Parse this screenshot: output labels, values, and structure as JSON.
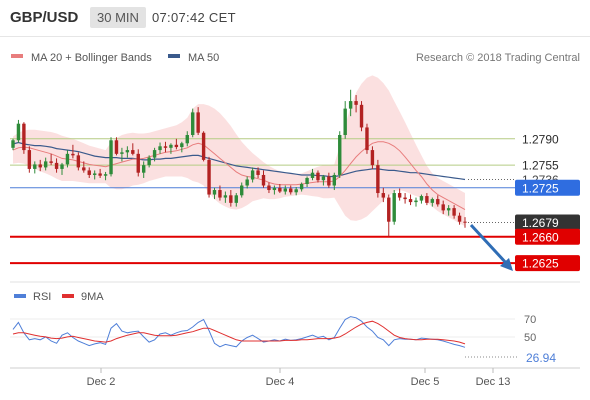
{
  "header": {
    "symbol": "GBP/USD",
    "timeframe": "30 MIN",
    "time": "07:07:42 CET"
  },
  "legend": {
    "bb_label": "MA 20 + Bollinger Bands",
    "ma50_label": "MA 50",
    "credit": "Research © 2018 Trading Central",
    "bb_color": "#e87d7d",
    "ma50_color": "#3a5a8c"
  },
  "rsi_legend": {
    "rsi_label": "RSI",
    "ma_label": "9MA",
    "rsi_color": "#4f7fd8",
    "ma_color": "#e03030"
  },
  "colors": {
    "up_candle": "#2e8b3a",
    "down_candle": "#b22222",
    "resistance_line": "#b5cc84",
    "pivot_line": "#4f7fd8",
    "support_line": "#e00000",
    "arrow": "#2f6db5"
  },
  "chart_data": {
    "type": "candlestick",
    "price_axis_range": [
      1.26,
      1.286
    ],
    "levels": [
      {
        "label": "1.2790",
        "value": 1.279,
        "kind": "resistance"
      },
      {
        "label": "1.2755",
        "value": 1.2755,
        "kind": "resistance"
      },
      {
        "label": "1.2736",
        "value": 1.2736,
        "kind": "ma50"
      },
      {
        "label": "1.2725",
        "value": 1.2725,
        "kind": "pivot"
      },
      {
        "label": "1.2679",
        "value": 1.2679,
        "kind": "last"
      },
      {
        "label": "1.2660",
        "value": 1.266,
        "kind": "support"
      },
      {
        "label": "1.2625",
        "value": 1.2625,
        "kind": "support"
      }
    ],
    "x_ticks": [
      "Dec 2",
      "Dec 4",
      "Dec 5",
      "Dec 13"
    ],
    "ohlc": [
      [
        1.2778,
        1.279,
        1.2775,
        1.2788
      ],
      [
        1.2788,
        1.2815,
        1.2785,
        1.281
      ],
      [
        1.281,
        1.2812,
        1.277,
        1.2775
      ],
      [
        1.2775,
        1.278,
        1.2745,
        1.275
      ],
      [
        1.275,
        1.276,
        1.2744,
        1.2756
      ],
      [
        1.2756,
        1.2762,
        1.2747,
        1.2752
      ],
      [
        1.2752,
        1.2765,
        1.2748,
        1.276
      ],
      [
        1.276,
        1.277,
        1.2755,
        1.2758
      ],
      [
        1.2758,
        1.2764,
        1.2745,
        1.275
      ],
      [
        1.275,
        1.2758,
        1.2742,
        1.2756
      ],
      [
        1.2756,
        1.2775,
        1.2752,
        1.277
      ],
      [
        1.277,
        1.2782,
        1.2764,
        1.2768
      ],
      [
        1.2768,
        1.2772,
        1.2748,
        1.2752
      ],
      [
        1.2752,
        1.276,
        1.2745,
        1.2748
      ],
      [
        1.2748,
        1.2752,
        1.2738,
        1.2742
      ],
      [
        1.2742,
        1.2748,
        1.2736,
        1.2744
      ],
      [
        1.2744,
        1.275,
        1.2738,
        1.2741
      ],
      [
        1.2741,
        1.2746,
        1.2735,
        1.2743
      ],
      [
        1.2743,
        1.2792,
        1.274,
        1.2788
      ],
      [
        1.2788,
        1.2792,
        1.2768,
        1.277
      ],
      [
        1.277,
        1.2778,
        1.276,
        1.2772
      ],
      [
        1.2772,
        1.278,
        1.2765,
        1.2775
      ],
      [
        1.2775,
        1.2784,
        1.2768,
        1.277
      ],
      [
        1.277,
        1.2776,
        1.274,
        1.2745
      ],
      [
        1.2745,
        1.276,
        1.2738,
        1.2755
      ],
      [
        1.2755,
        1.2768,
        1.2752,
        1.2765
      ],
      [
        1.2765,
        1.2778,
        1.276,
        1.2775
      ],
      [
        1.2775,
        1.2785,
        1.277,
        1.278
      ],
      [
        1.278,
        1.2786,
        1.2772,
        1.2778
      ],
      [
        1.2778,
        1.2784,
        1.277,
        1.2782
      ],
      [
        1.2782,
        1.279,
        1.2776,
        1.2779
      ],
      [
        1.2779,
        1.2786,
        1.2772,
        1.2784
      ],
      [
        1.2784,
        1.28,
        1.278,
        1.2795
      ],
      [
        1.2795,
        1.283,
        1.2792,
        1.2825
      ],
      [
        1.2825,
        1.2832,
        1.2795,
        1.2798
      ],
      [
        1.2798,
        1.28,
        1.276,
        1.2762
      ],
      [
        1.2762,
        1.2766,
        1.2712,
        1.2716
      ],
      [
        1.2716,
        1.2725,
        1.271,
        1.2722
      ],
      [
        1.2722,
        1.2728,
        1.2708,
        1.2712
      ],
      [
        1.2712,
        1.272,
        1.2705,
        1.2715
      ],
      [
        1.2715,
        1.2722,
        1.27,
        1.2705
      ],
      [
        1.2705,
        1.2718,
        1.27,
        1.2715
      ],
      [
        1.2715,
        1.2732,
        1.2712,
        1.2728
      ],
      [
        1.2728,
        1.274,
        1.2724,
        1.2736
      ],
      [
        1.2736,
        1.2752,
        1.2732,
        1.2748
      ],
      [
        1.2748,
        1.2752,
        1.2738,
        1.2742
      ],
      [
        1.2742,
        1.2748,
        1.2725,
        1.2728
      ],
      [
        1.2728,
        1.2732,
        1.2718,
        1.2722
      ],
      [
        1.2722,
        1.2728,
        1.2716,
        1.2725
      ],
      [
        1.2725,
        1.273,
        1.2718,
        1.272
      ],
      [
        1.272,
        1.2728,
        1.2716,
        1.2724
      ],
      [
        1.2724,
        1.2728,
        1.2716,
        1.2719
      ],
      [
        1.2719,
        1.2726,
        1.2715,
        1.2723
      ],
      [
        1.2723,
        1.2732,
        1.272,
        1.273
      ],
      [
        1.273,
        1.274,
        1.2726,
        1.2738
      ],
      [
        1.2738,
        1.275,
        1.2735,
        1.2745
      ],
      [
        1.2745,
        1.2748,
        1.2732,
        1.2735
      ],
      [
        1.2735,
        1.2742,
        1.2728,
        1.274
      ],
      [
        1.274,
        1.2745,
        1.2725,
        1.2728
      ],
      [
        1.2728,
        1.2745,
        1.2722,
        1.2742
      ],
      [
        1.2742,
        1.28,
        1.2738,
        1.2795
      ],
      [
        1.2795,
        1.284,
        1.279,
        1.283
      ],
      [
        1.283,
        1.2855,
        1.282,
        1.284
      ],
      [
        1.284,
        1.2848,
        1.2825,
        1.2835
      ],
      [
        1.2835,
        1.284,
        1.28,
        1.2805
      ],
      [
        1.2805,
        1.281,
        1.277,
        1.2775
      ],
      [
        1.2775,
        1.278,
        1.275,
        1.2755
      ],
      [
        1.2755,
        1.2762,
        1.2712,
        1.2718
      ],
      [
        1.2718,
        1.2725,
        1.2706,
        1.2712
      ],
      [
        1.2712,
        1.2716,
        1.266,
        1.268
      ],
      [
        1.268,
        1.2722,
        1.2676,
        1.2718
      ],
      [
        1.2718,
        1.2724,
        1.2708,
        1.2712
      ],
      [
        1.2712,
        1.2718,
        1.2704,
        1.271
      ],
      [
        1.271,
        1.2716,
        1.2702,
        1.2706
      ],
      [
        1.2706,
        1.2712,
        1.27,
        1.2708
      ],
      [
        1.2708,
        1.2716,
        1.2704,
        1.2714
      ],
      [
        1.2714,
        1.2718,
        1.2702,
        1.2705
      ],
      [
        1.2705,
        1.2712,
        1.27,
        1.271
      ],
      [
        1.271,
        1.2715,
        1.27,
        1.2703
      ],
      [
        1.2703,
        1.2708,
        1.269,
        1.2695
      ],
      [
        1.2695,
        1.2702,
        1.2688,
        1.2698
      ],
      [
        1.2698,
        1.2702,
        1.2684,
        1.2688
      ],
      [
        1.2688,
        1.2692,
        1.2676,
        1.268
      ],
      [
        1.268,
        1.2686,
        1.2672,
        1.2679
      ]
    ],
    "ma50": [
      1.2783,
      1.2785,
      1.2783,
      1.2782,
      1.2781,
      1.2781,
      1.278,
      1.2779,
      1.2777,
      1.2776,
      1.2775,
      1.2774,
      1.2773,
      1.2771,
      1.2769,
      1.2767,
      1.2766,
      1.2765,
      1.2765,
      1.2765,
      1.2764,
      1.2764,
      1.2764,
      1.2763,
      1.2762,
      1.2762,
      1.2763,
      1.2763,
      1.2764,
      1.2764,
      1.2765,
      1.2766,
      1.2767,
      1.2768,
      1.2768,
      1.2766,
      1.2764,
      1.2762,
      1.276,
      1.2758,
      1.2756,
      1.2754,
      1.2753,
      1.2752,
      1.2751,
      1.275,
      1.2749,
      1.2748,
      1.2747,
      1.2746,
      1.2745,
      1.2744,
      1.2743,
      1.2742,
      1.2742,
      1.2742,
      1.2741,
      1.2741,
      1.274,
      1.274,
      1.2741,
      1.2743,
      1.2745,
      1.2747,
      1.2748,
      1.2749,
      1.275,
      1.275,
      1.2749,
      1.2748,
      1.2748,
      1.2747,
      1.2746,
      1.2745,
      1.2745,
      1.2744,
      1.2743,
      1.2742,
      1.2741,
      1.274,
      1.2739,
      1.2738,
      1.2737,
      1.2736
    ],
    "ma20": [
      1.2775,
      1.2778,
      1.2779,
      1.2778,
      1.2776,
      1.2774,
      1.2772,
      1.277,
      1.2767,
      1.2764,
      1.2763,
      1.2762,
      1.276,
      1.2758,
      1.2756,
      1.2755,
      1.2754,
      1.2753,
      1.2755,
      1.2757,
      1.2759,
      1.2761,
      1.2763,
      1.2763,
      1.2764,
      1.2766,
      1.2768,
      1.277,
      1.2772,
      1.2773,
      1.2774,
      1.2776,
      1.2778,
      1.2782,
      1.2784,
      1.2782,
      1.2776,
      1.277,
      1.2764,
      1.2758,
      1.2752,
      1.2746,
      1.2742,
      1.274,
      1.2739,
      1.2737,
      1.2735,
      1.2732,
      1.273,
      1.2729,
      1.2729,
      1.2729,
      1.2729,
      1.273,
      1.2731,
      1.2732,
      1.2733,
      1.2733,
      1.2733,
      1.2734,
      1.274,
      1.2748,
      1.2757,
      1.2766,
      1.2773,
      1.2779,
      1.2784,
      1.2786,
      1.2786,
      1.2784,
      1.278,
      1.2774,
      1.2766,
      1.2757,
      1.2748,
      1.274,
      1.273,
      1.2722,
      1.2716,
      1.2712,
      1.2708,
      1.2704,
      1.27,
      1.2696
    ],
    "bb_width": [
      0.0018,
      0.002,
      0.0022,
      0.0024,
      0.0026,
      0.0027,
      0.0028,
      0.0029,
      0.003,
      0.003,
      0.0029,
      0.0028,
      0.0027,
      0.0026,
      0.0025,
      0.0024,
      0.0023,
      0.0022,
      0.003,
      0.0034,
      0.0036,
      0.0036,
      0.0035,
      0.0034,
      0.0033,
      0.0032,
      0.0032,
      0.0032,
      0.0032,
      0.0033,
      0.0034,
      0.0036,
      0.004,
      0.0048,
      0.0052,
      0.0054,
      0.0058,
      0.006,
      0.006,
      0.0058,
      0.0055,
      0.005,
      0.0044,
      0.0038,
      0.0032,
      0.0028,
      0.0024,
      0.0022,
      0.002,
      0.0018,
      0.0016,
      0.0015,
      0.0014,
      0.0014,
      0.0016,
      0.0018,
      0.002,
      0.0022,
      0.0022,
      0.0022,
      0.004,
      0.006,
      0.0075,
      0.0085,
      0.009,
      0.0092,
      0.009,
      0.0085,
      0.0078,
      0.007,
      0.006,
      0.0052,
      0.0046,
      0.004,
      0.0034,
      0.0028,
      0.0024,
      0.0022,
      0.0022,
      0.0022,
      0.0022,
      0.0022,
      0.0022,
      0.0022
    ],
    "rsi_panel": {
      "y_ticks": [
        "70",
        "50"
      ],
      "last_value": "26.94",
      "ylim": [
        0,
        100
      ],
      "rsi": [
        58,
        70,
        52,
        40,
        42,
        40,
        45,
        38,
        34,
        48,
        52,
        44,
        38,
        34,
        30,
        33,
        35,
        32,
        60,
        68,
        55,
        52,
        54,
        55,
        45,
        36,
        40,
        50,
        52,
        48,
        52,
        55,
        56,
        62,
        70,
        75,
        56,
        34,
        28,
        32,
        30,
        28,
        38,
        44,
        48,
        42,
        36,
        38,
        40,
        38,
        41,
        39,
        40,
        42,
        45,
        48,
        44,
        46,
        40,
        44,
        60,
        75,
        80,
        78,
        72,
        62,
        55,
        44,
        40,
        30,
        40,
        42,
        41,
        41,
        40,
        43,
        42,
        41,
        40,
        38,
        35,
        32,
        30,
        27
      ],
      "ma": [
        50,
        52,
        52,
        50,
        48,
        46,
        45,
        43,
        42,
        43,
        45,
        46,
        44,
        42,
        40,
        38,
        37,
        36,
        38,
        42,
        45,
        48,
        50,
        52,
        52,
        50,
        48,
        47,
        47,
        47,
        48,
        50,
        52,
        54,
        57,
        60,
        60,
        56,
        52,
        48,
        44,
        40,
        38,
        38,
        38,
        38,
        38,
        38,
        38,
        38,
        39,
        39,
        39,
        40,
        40,
        41,
        42,
        42,
        42,
        43,
        45,
        50,
        56,
        62,
        67,
        70,
        72,
        68,
        62,
        55,
        48,
        44,
        42,
        41,
        40,
        40,
        41,
        41,
        41,
        40,
        39,
        38,
        36,
        33
      ]
    }
  }
}
